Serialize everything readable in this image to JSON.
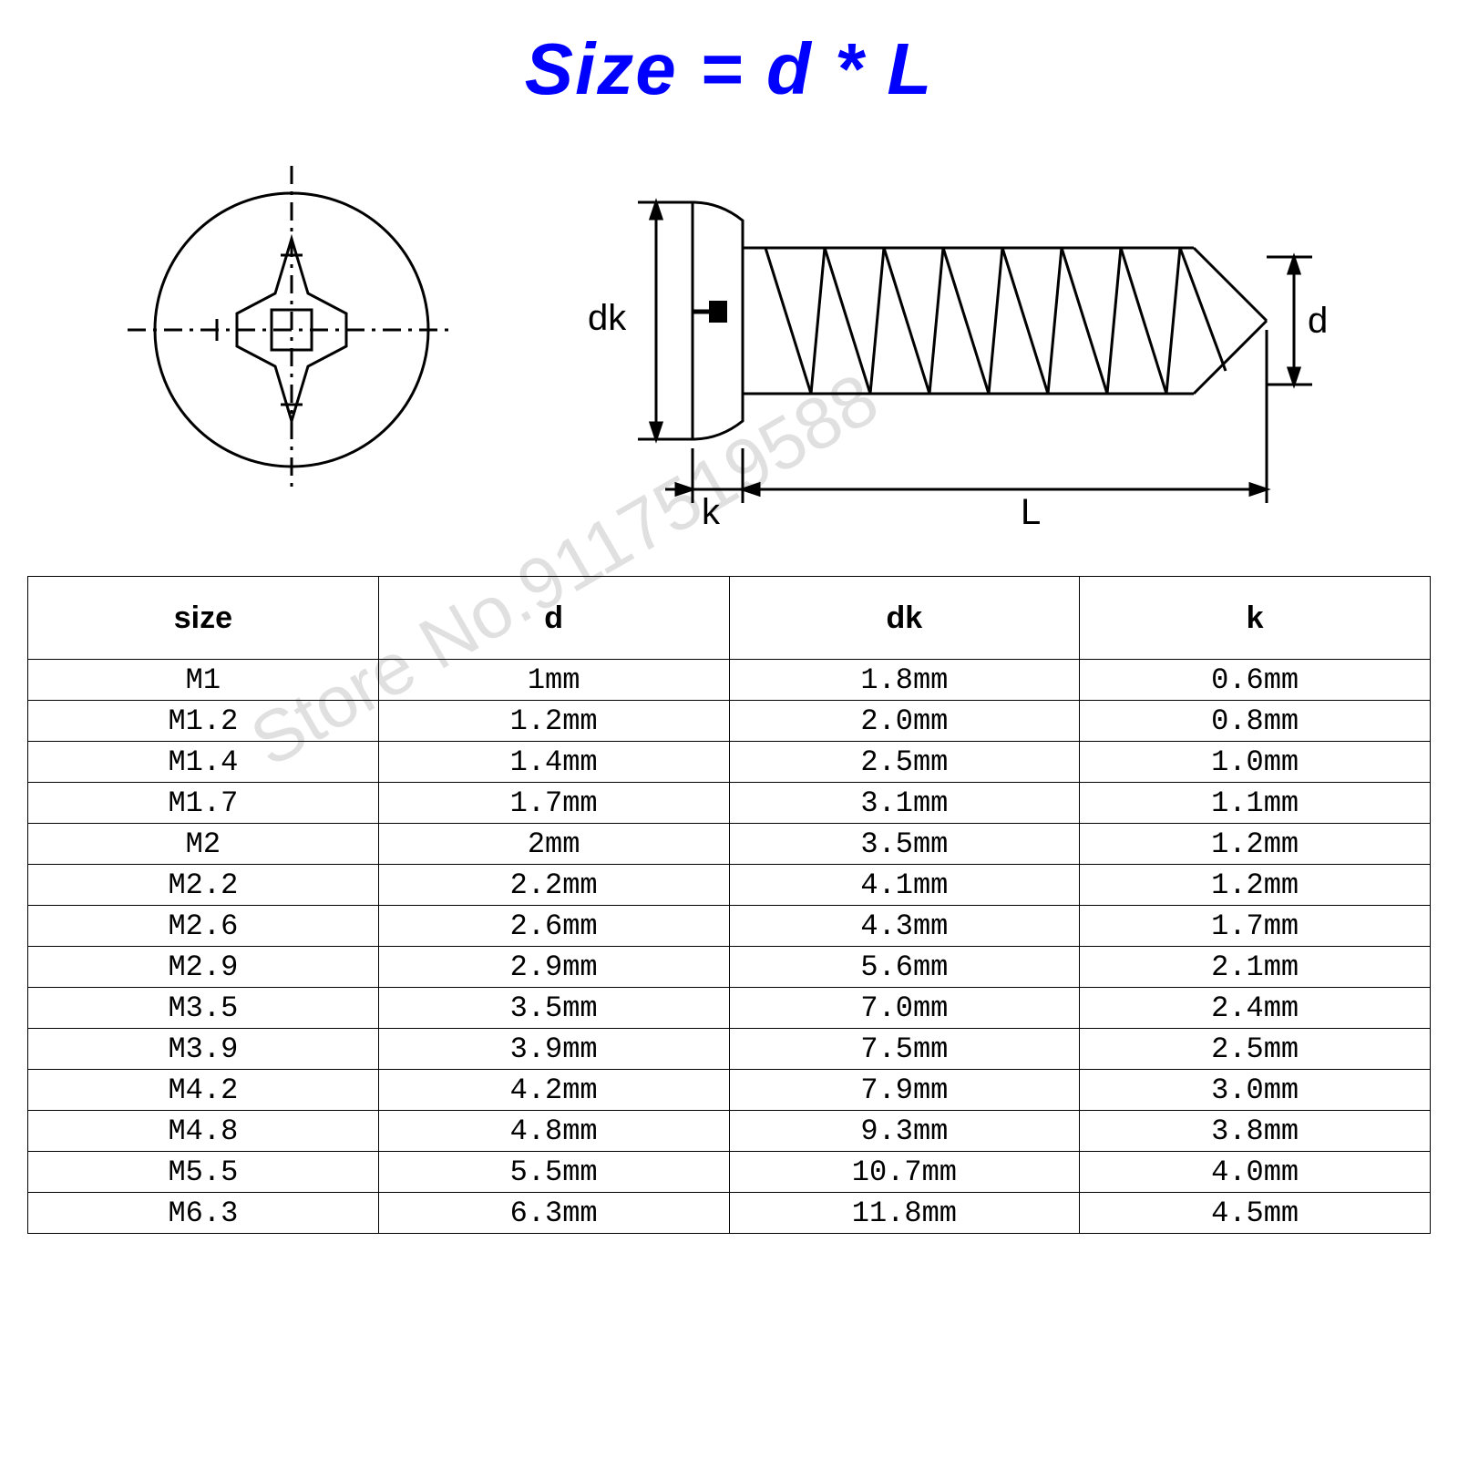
{
  "title": "Size = d * L",
  "title_color": "#0000ff",
  "title_fontsize": 80,
  "background_color": "#ffffff",
  "watermark": "Store No.9117519588",
  "diagram_labels": {
    "dk": "dk",
    "k": "k",
    "L": "L",
    "d": "d"
  },
  "diagram": {
    "line_color": "#000000",
    "line_width": 3,
    "centerline_dash": "16 8 4 8",
    "head_view": {
      "outer_radius": 150,
      "phillips_cross_span": 120,
      "phillips_cross_thickness": 36
    },
    "side_view": {
      "head_diameter": 260,
      "head_thickness": 60,
      "shank_diameter": 140,
      "length": 560,
      "thread_count": 8
    }
  },
  "table": {
    "columns": [
      "size",
      "d",
      "dk",
      "k"
    ],
    "rows": [
      [
        "M1",
        "1mm",
        "1.8mm",
        "0.6mm"
      ],
      [
        "M1.2",
        "1.2mm",
        "2.0mm",
        "0.8mm"
      ],
      [
        "M1.4",
        "1.4mm",
        "2.5mm",
        "1.0mm"
      ],
      [
        "M1.7",
        "1.7mm",
        "3.1mm",
        "1.1mm"
      ],
      [
        "M2",
        "2mm",
        "3.5mm",
        "1.2mm"
      ],
      [
        "M2.2",
        "2.2mm",
        "4.1mm",
        "1.2mm"
      ],
      [
        "M2.6",
        "2.6mm",
        "4.3mm",
        "1.7mm"
      ],
      [
        "M2.9",
        "2.9mm",
        "5.6mm",
        "2.1mm"
      ],
      [
        "M3.5",
        "3.5mm",
        "7.0mm",
        "2.4mm"
      ],
      [
        "M3.9",
        "3.9mm",
        "7.5mm",
        "2.5mm"
      ],
      [
        "M4.2",
        "4.2mm",
        "7.9mm",
        "3.0mm"
      ],
      [
        "M4.8",
        "4.8mm",
        "9.3mm",
        "3.8mm"
      ],
      [
        "M5.5",
        "5.5mm",
        "10.7mm",
        "4.0mm"
      ],
      [
        "M6.3",
        "6.3mm",
        "11.8mm",
        "4.5mm"
      ]
    ],
    "header_fontsize": 34,
    "cell_fontsize": 32,
    "border_color": "#000000"
  }
}
